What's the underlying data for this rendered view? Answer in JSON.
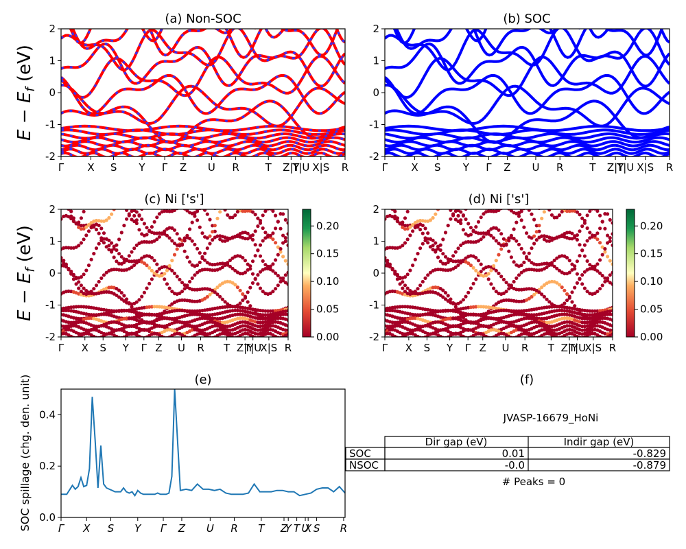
{
  "figure": {
    "ylabel_energy": "E − E_f (eV)",
    "kpath_labels": [
      "Γ",
      "X",
      "S",
      "Y",
      "Γ",
      "Z",
      "U",
      "R",
      "T",
      "Z|Y",
      "T|U",
      "X|S",
      "R"
    ],
    "kpath_labels_spillage": [
      "Γ",
      "X",
      "S",
      "Y",
      "Γ",
      "Z",
      "U",
      "R",
      "T",
      "Z",
      "Y",
      "T",
      "U",
      "X",
      "S",
      "R"
    ],
    "colors": {
      "nonsoc": "#ff0000",
      "nonsoc_dash": "#3333ff",
      "soc": "#0000ff",
      "spillage": "#1f77b4"
    }
  },
  "chart_data": [
    {
      "id": "a",
      "type": "line",
      "title": "(a) Non-SOC",
      "ylabel": "E − E_f (eV)",
      "ylim": [
        -2,
        2
      ],
      "yticks": [
        -2,
        -1,
        0,
        1,
        2
      ],
      "series": [
        {
          "name": "",
          "color": "#ff0000"
        }
      ]
    },
    {
      "id": "b",
      "type": "line",
      "title": "(b) SOC",
      "ylim": [
        -2,
        2
      ],
      "yticks": [
        -2,
        -1,
        0,
        1,
        2
      ],
      "series": [
        {
          "name": "",
          "color": "#0000ff"
        }
      ]
    },
    {
      "id": "c",
      "type": "scatter",
      "title": "(c)  Ni ['s']",
      "ylabel": "E − E_f (eV)",
      "ylim": [
        -2,
        2
      ],
      "yticks": [
        -2,
        -1,
        0,
        1,
        2
      ],
      "colorbar": {
        "ticks": [
          "0.00",
          "0.05",
          "0.10",
          "0.15",
          "0.20"
        ],
        "range": [
          0,
          0.23
        ]
      }
    },
    {
      "id": "d",
      "type": "scatter",
      "title": "(d) Ni ['s']",
      "ylim": [
        -2,
        2
      ],
      "yticks": [
        -2,
        -1,
        0,
        1,
        2
      ],
      "colorbar": {
        "ticks": [
          "0.00",
          "0.05",
          "0.10",
          "0.15",
          "0.20"
        ],
        "range": [
          0,
          0.23
        ]
      }
    },
    {
      "id": "e",
      "type": "line",
      "title": "(e)",
      "ylabel": "SOC spillage (chg. den. unit)",
      "ylim": [
        0,
        0.5
      ],
      "yticks": [
        "0.0",
        "0.2",
        "0.4"
      ],
      "x": [
        0,
        2,
        4,
        5,
        6,
        7,
        8,
        9,
        10,
        11,
        12,
        13,
        14,
        15,
        16,
        17,
        18,
        19,
        20,
        21,
        22,
        23,
        24,
        25,
        26,
        27,
        28,
        29,
        30,
        31,
        32,
        33,
        34,
        35,
        36,
        37,
        38,
        39,
        40,
        42,
        44,
        46,
        48,
        50,
        52,
        54,
        56,
        58,
        60,
        62,
        64,
        66,
        68,
        70,
        72,
        74,
        76,
        78,
        80,
        82,
        84,
        86,
        88,
        90,
        92,
        94,
        96,
        98,
        100
      ],
      "y": [
        0.09,
        0.09,
        0.125,
        0.11,
        0.12,
        0.155,
        0.12,
        0.125,
        0.19,
        0.47,
        0.3,
        0.115,
        0.28,
        0.13,
        0.115,
        0.11,
        0.105,
        0.1,
        0.1,
        0.1,
        0.115,
        0.1,
        0.095,
        0.1,
        0.085,
        0.105,
        0.095,
        0.09,
        0.09,
        0.09,
        0.09,
        0.09,
        0.095,
        0.09,
        0.09,
        0.09,
        0.095,
        0.16,
        0.52,
        0.105,
        0.11,
        0.105,
        0.13,
        0.11,
        0.11,
        0.105,
        0.11,
        0.095,
        0.09,
        0.09,
        0.09,
        0.095,
        0.13,
        0.1,
        0.1,
        0.1,
        0.105,
        0.105,
        0.1,
        0.1,
        0.085,
        0.09,
        0.095,
        0.11,
        0.115,
        0.115,
        0.1,
        0.12,
        0.095
      ]
    },
    {
      "id": "f",
      "type": "table",
      "title": "(f)",
      "subtitle": "JVASP-16679_HoNi",
      "columns": [
        "",
        "Dir gap (eV)",
        "Indir gap (eV)"
      ],
      "rows": [
        [
          "SOC",
          "0.01",
          "-0.829"
        ],
        [
          "NSOC",
          "-0.0",
          "-0.879"
        ]
      ],
      "footer": "# Peaks = 0"
    }
  ]
}
